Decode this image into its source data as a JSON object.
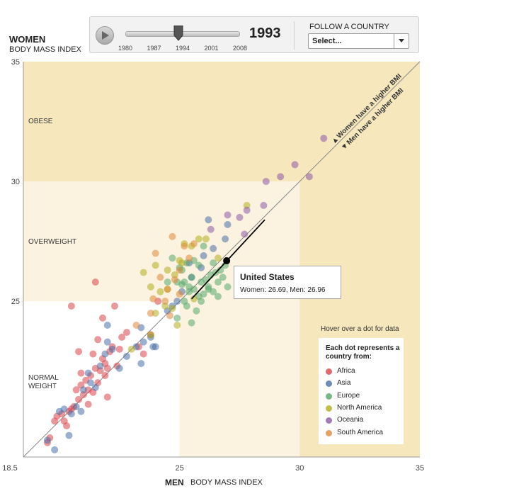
{
  "controls": {
    "year": "1993",
    "year_value": 1993,
    "year_range": [
      1980,
      2008
    ],
    "slider_ticks": [
      "1980",
      "1987",
      "1994",
      "2001",
      "2008"
    ],
    "follow_label": "FOLLOW A COUNTRY",
    "select_value": "Select..."
  },
  "y_title": "WOMEN",
  "y_subtitle": "BODY MASS INDEX",
  "x_title": "MEN",
  "x_subtitle": "BODY MASS INDEX",
  "zones": {
    "obese": "OBESE",
    "overweight": "OVERWEIGHT",
    "normal_line1": "NORMAL",
    "normal_line2": "WEIGHT"
  },
  "diagonal": {
    "women_higher": "Women have a higher BMI",
    "men_higher": "Men have a higher BMI"
  },
  "tooltip": {
    "country": "United States",
    "values": "Women: 26.69, Men: 26.96"
  },
  "hover_hint": "Hover over a dot for data",
  "legend": {
    "title": "Each dot represents a country from:",
    "items": [
      {
        "label": "Africa",
        "color": "#d9434a"
      },
      {
        "label": "Asia",
        "color": "#4a6fa8"
      },
      {
        "label": "Europe",
        "color": "#55a86a"
      },
      {
        "label": "North America",
        "color": "#b3ad1e"
      },
      {
        "label": "Oceania",
        "color": "#8c5aa8"
      },
      {
        "label": "South America",
        "color": "#e0883a"
      }
    ]
  },
  "colors": {
    "obese_band": "#f6e7bd",
    "overweight_band": "#fbf3df",
    "normal_band": "#ffffff",
    "diagonal": "#888888",
    "highlight": "#000000"
  },
  "chart_data": {
    "type": "scatter",
    "xlabel": "MEN BODY MASS INDEX",
    "ylabel": "WOMEN BODY MASS INDEX",
    "xlim": [
      18.5,
      35
    ],
    "ylim": [
      18.5,
      35
    ],
    "x_ticks": [
      "18.5",
      "25",
      "30",
      "35"
    ],
    "y_ticks": [
      "35",
      "30",
      "25"
    ],
    "thresholds": [
      25,
      30
    ],
    "grid": false,
    "legend_position": "bottom-right",
    "highlight": {
      "label": "United States",
      "x": 26.96,
      "y": 26.69,
      "trail_start": [
        25.5,
        25.1
      ],
      "trail_end": [
        28.55,
        28.4
      ]
    },
    "series": [
      {
        "name": "Africa",
        "points": [
          [
            19.5,
            19.1
          ],
          [
            19.6,
            19.3
          ],
          [
            19.8,
            20.0
          ],
          [
            19.9,
            20.2
          ],
          [
            20.1,
            20.3
          ],
          [
            20.2,
            20.0
          ],
          [
            20.3,
            19.8
          ],
          [
            20.4,
            20.4
          ],
          [
            20.5,
            20.5
          ],
          [
            20.6,
            20.6
          ],
          [
            20.7,
            21.3
          ],
          [
            20.8,
            20.9
          ],
          [
            20.9,
            21.5
          ],
          [
            21.0,
            21.1
          ],
          [
            21.1,
            21.7
          ],
          [
            21.2,
            21.3
          ],
          [
            21.2,
            20.7
          ],
          [
            21.3,
            21.9
          ],
          [
            21.4,
            21.2
          ],
          [
            21.5,
            22.2
          ],
          [
            21.6,
            21.6
          ],
          [
            21.7,
            22.1
          ],
          [
            21.8,
            22.6
          ],
          [
            21.9,
            22.4
          ],
          [
            21.9,
            21.9
          ],
          [
            22.1,
            22.9
          ],
          [
            22.2,
            23.1
          ],
          [
            22.4,
            22.3
          ],
          [
            22.5,
            23.0
          ],
          [
            22.6,
            23.5
          ],
          [
            21.4,
            22.8
          ],
          [
            20.9,
            22.0
          ],
          [
            20.8,
            22.9
          ],
          [
            22.8,
            23.7
          ],
          [
            23.3,
            23.1
          ],
          [
            21.6,
            23.4
          ],
          [
            22.0,
            21.0
          ],
          [
            22.3,
            24.8
          ],
          [
            21.8,
            24.3
          ],
          [
            20.5,
            24.8
          ],
          [
            21.5,
            25.8
          ],
          [
            23.8,
            23.6
          ],
          [
            24.1,
            25.0
          ],
          [
            23.5,
            22.8
          ],
          [
            22.0,
            22.2
          ]
        ]
      },
      {
        "name": "Asia",
        "points": [
          [
            19.5,
            19.2
          ],
          [
            19.8,
            18.8
          ],
          [
            20.0,
            20.4
          ],
          [
            20.2,
            20.5
          ],
          [
            20.4,
            19.4
          ],
          [
            20.5,
            20.3
          ],
          [
            20.7,
            20.6
          ],
          [
            20.9,
            20.4
          ],
          [
            21.0,
            21.3
          ],
          [
            21.2,
            22.0
          ],
          [
            21.3,
            21.6
          ],
          [
            21.5,
            21.4
          ],
          [
            21.7,
            22.3
          ],
          [
            21.9,
            22.8
          ],
          [
            22.0,
            23.3
          ],
          [
            22.2,
            23.0
          ],
          [
            22.5,
            22.2
          ],
          [
            22.8,
            22.7
          ],
          [
            23.2,
            23.1
          ],
          [
            23.5,
            23.3
          ],
          [
            23.8,
            23.5
          ],
          [
            23.9,
            23.1
          ],
          [
            24.0,
            23.1
          ],
          [
            23.4,
            22.4
          ],
          [
            24.5,
            24.6
          ],
          [
            24.9,
            25.0
          ],
          [
            25.1,
            25.4
          ],
          [
            25.5,
            26.0
          ],
          [
            25.9,
            26.4
          ],
          [
            26.0,
            26.9
          ],
          [
            26.4,
            27.2
          ],
          [
            26.9,
            27.6
          ],
          [
            27.0,
            28.2
          ],
          [
            22.0,
            24.0
          ],
          [
            23.4,
            23.9
          ],
          [
            24.7,
            24.8
          ],
          [
            25.4,
            26.6
          ],
          [
            26.2,
            28.4
          ]
        ]
      },
      {
        "name": "Europe",
        "points": [
          [
            24.9,
            24.3
          ],
          [
            25.1,
            25.7
          ],
          [
            25.2,
            25.0
          ],
          [
            25.3,
            24.8
          ],
          [
            25.4,
            25.4
          ],
          [
            25.5,
            26.0
          ],
          [
            25.6,
            25.5
          ],
          [
            25.7,
            24.6
          ],
          [
            25.8,
            25.2
          ],
          [
            25.9,
            25.8
          ],
          [
            26.0,
            25.3
          ],
          [
            26.1,
            25.9
          ],
          [
            26.2,
            25.6
          ],
          [
            26.3,
            26.1
          ],
          [
            26.4,
            25.4
          ],
          [
            26.5,
            26.2
          ],
          [
            26.6,
            25.8
          ],
          [
            26.7,
            26.3
          ],
          [
            26.8,
            26.0
          ],
          [
            26.9,
            26.5
          ],
          [
            27.0,
            25.6
          ],
          [
            25.5,
            24.1
          ],
          [
            25.2,
            25.8
          ],
          [
            24.9,
            25.8
          ],
          [
            25.1,
            26.3
          ],
          [
            25.3,
            26.6
          ],
          [
            24.7,
            26.8
          ],
          [
            25.6,
            26.7
          ],
          [
            26.0,
            27.3
          ],
          [
            25.8,
            26.5
          ],
          [
            25.4,
            25.6
          ],
          [
            26.6,
            25.2
          ],
          [
            26.2,
            25.5
          ],
          [
            24.5,
            25.8
          ],
          [
            25.0,
            26.4
          ],
          [
            25.9,
            25.0
          ],
          [
            26.4,
            26.6
          ]
        ]
      },
      {
        "name": "North America",
        "points": [
          [
            23.8,
            25.6
          ],
          [
            24.0,
            26.5
          ],
          [
            24.2,
            25.4
          ],
          [
            24.5,
            25.5
          ],
          [
            24.8,
            26.1
          ],
          [
            25.1,
            26.6
          ],
          [
            25.2,
            27.4
          ],
          [
            25.5,
            27.3
          ],
          [
            25.8,
            27.6
          ],
          [
            26.1,
            27.6
          ],
          [
            25.0,
            26.7
          ],
          [
            24.5,
            26.3
          ],
          [
            24.7,
            24.7
          ],
          [
            23.0,
            23.0
          ],
          [
            23.8,
            23.6
          ],
          [
            23.5,
            26.2
          ],
          [
            24.0,
            24.5
          ],
          [
            24.9,
            24.0
          ],
          [
            27.8,
            29.0
          ],
          [
            24.4,
            24.8
          ],
          [
            26.6,
            26.8
          ],
          [
            25.6,
            25.1
          ]
        ]
      },
      {
        "name": "Oceania",
        "points": [
          [
            27.0,
            28.6
          ],
          [
            27.5,
            28.5
          ],
          [
            27.8,
            28.8
          ],
          [
            28.5,
            29.0
          ],
          [
            29.2,
            30.2
          ],
          [
            28.6,
            30.0
          ],
          [
            29.8,
            30.7
          ],
          [
            30.4,
            30.2
          ],
          [
            31.0,
            31.8
          ],
          [
            26.3,
            28.0
          ],
          [
            27.7,
            27.8
          ]
        ]
      },
      {
        "name": "South America",
        "points": [
          [
            24.0,
            27.0
          ],
          [
            24.2,
            26.0
          ],
          [
            24.5,
            25.5
          ],
          [
            24.6,
            24.4
          ],
          [
            25.0,
            26.3
          ],
          [
            24.8,
            25.9
          ],
          [
            25.2,
            27.3
          ],
          [
            25.4,
            26.8
          ],
          [
            24.4,
            25.0
          ],
          [
            23.8,
            24.5
          ],
          [
            24.7,
            27.7
          ],
          [
            23.2,
            24.0
          ],
          [
            23.9,
            25.1
          ],
          [
            25.6,
            27.4
          ],
          [
            25.0,
            25.3
          ]
        ]
      }
    ]
  }
}
